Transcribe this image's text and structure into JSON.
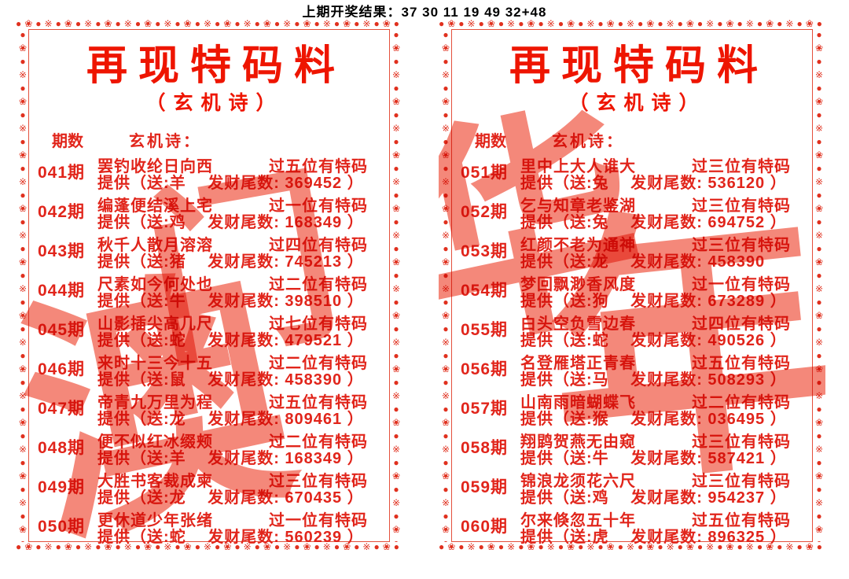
{
  "header": {
    "previous_result": "上期开奖结果：37 30 11 19 49 32+48"
  },
  "decor": {
    "border_pattern": "●❀●※",
    "accent_red": "#e1251b",
    "title_red": "#ee1500",
    "watermark_color": "#f26a58"
  },
  "panels": [
    {
      "title": "再现特码料",
      "subtitle": "（玄机诗）",
      "col_period": "期数",
      "col_poem": "玄机诗：",
      "watermark": [
        "门",
        "澳"
      ],
      "entries": [
        {
          "period": "041期",
          "poem": "罢钓收纶日向西",
          "hint": "过五位有特码",
          "provide": "提供（送:羊　 发财尾数:  369452 ）"
        },
        {
          "period": "042期",
          "poem": "编蓬便结溪上宅",
          "hint": "过一位有特码",
          "provide": "提供（送:鸡　 发财尾数:  168349 ）"
        },
        {
          "period": "043期",
          "poem": "秋千人散月溶溶",
          "hint": "过四位有特码",
          "provide": "提供（送:猪　 发财尾数:  745213 ）"
        },
        {
          "period": "044期",
          "poem": "尺素如今何处也",
          "hint": "过二位有特码",
          "provide": "提供（送:牛　 发财尾数:  398510 ）"
        },
        {
          "period": "045期",
          "poem": "山影插尖高几尺",
          "hint": "过七位有特码",
          "provide": "提供（送:蛇　 发财尾数:  479521 ）"
        },
        {
          "period": "046期",
          "poem": "来时十三今十五",
          "hint": "过二位有特码",
          "provide": "提供（送:鼠　 发财尾数:  458390 ）"
        },
        {
          "period": "047期",
          "poem": "帝青九万里为程",
          "hint": "过五位有特码",
          "provide": "提供（送:龙　 发财尾数:  809461 ）"
        },
        {
          "period": "048期",
          "poem": "便不似红冰缀颊",
          "hint": "过二位有特码",
          "provide": "提供（送:羊　 发财尾数:  168349 ）"
        },
        {
          "period": "049期",
          "poem": "大胜书客裁成柬",
          "hint": "过三位有特码",
          "provide": "提供（送:龙　 发财尾数:  670435 ）"
        },
        {
          "period": "050期",
          "poem": "更休道少年张绪",
          "hint": "过一位有特码",
          "provide": "提供（送:蛇　 发财尾数:  560239 ）"
        }
      ]
    },
    {
      "title": "再现特码料",
      "subtitle": "（玄机诗）",
      "col_period": "期数",
      "col_poem": "玄机诗：",
      "watermark": [
        "华",
        "年"
      ],
      "entries": [
        {
          "period": "051期",
          "poem": "里中上大人谁大",
          "hint": "过三位有特码",
          "provide": "提供（送:兔　 发财尾数:  536120 ）"
        },
        {
          "period": "052期",
          "poem": "乞与知章老鉴湖",
          "hint": "过三位有特码",
          "provide": "提供（送:兔　 发财尾数:  694752 ）"
        },
        {
          "period": "053期",
          "poem": "红颜不老为通神",
          "hint": "过三位有特码",
          "provide": "提供（送:龙　 发财尾数:  458390"
        },
        {
          "period": "054期",
          "poem": "梦回飘渺香风度",
          "hint": "过一位有特码",
          "provide": "提供（送:狗　 发财尾数:  673289 ）"
        },
        {
          "period": "055期",
          "poem": "白头空负雪边春",
          "hint": "过四位有特码",
          "provide": "提供（送:蛇　 发财尾数:  490526 ）"
        },
        {
          "period": "056期",
          "poem": "名登雁塔正青春",
          "hint": "过五位有特码",
          "provide": "提供（送:马　 发财尾数:  508293 ）"
        },
        {
          "period": "057期",
          "poem": "山南雨暗蝴蝶飞",
          "hint": "过二位有特码",
          "provide": "提供（送:猴　 发财尾数:  036495 ）"
        },
        {
          "period": "058期",
          "poem": "翔鹍贺燕无由窥",
          "hint": "过三位有特码",
          "provide": "提供（送:牛　 发财尾数:  587421 ）"
        },
        {
          "period": "059期",
          "poem": "锦浪龙须花六尺",
          "hint": "过三位有特码",
          "provide": "提供（送:鸡　 发财尾数:  954237 ）"
        },
        {
          "period": "060期",
          "poem": "尔来倏忽五十年",
          "hint": "过五位有特码",
          "provide": "提供（送:虎　 发财尾数:  896325 ）"
        }
      ]
    }
  ]
}
